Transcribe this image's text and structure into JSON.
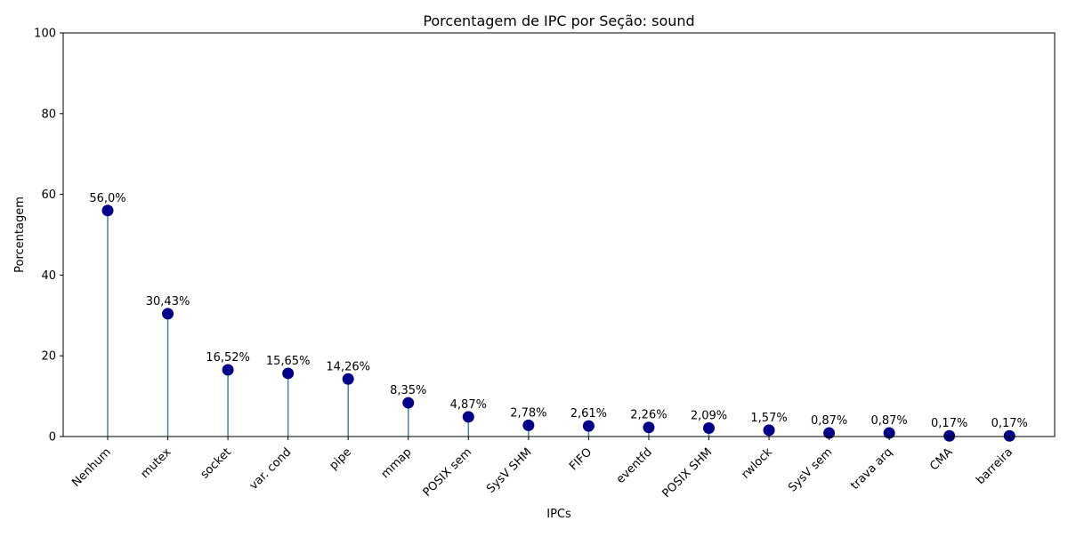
{
  "chart_data": {
    "type": "lollipop",
    "title": "Porcentagem de IPC por Seção: sound",
    "xlabel": "IPCs",
    "ylabel": "Porcentagem",
    "ylim": [
      0,
      100
    ],
    "yticks": [
      0,
      20,
      40,
      60,
      80,
      100
    ],
    "categories": [
      "Nenhum",
      "mutex",
      "socket",
      "var. cond",
      "pipe",
      "mmap",
      "POSIX sem",
      "SysV SHM",
      "FIFO",
      "eventfd",
      "POSIX SHM",
      "rwlock",
      "SysV sem",
      "trava arq",
      "CMA",
      "barreira"
    ],
    "values": [
      56.0,
      30.43,
      16.52,
      15.65,
      14.26,
      8.35,
      4.87,
      2.78,
      2.61,
      2.26,
      2.09,
      1.57,
      0.87,
      0.87,
      0.17,
      0.17
    ],
    "labels": [
      "56,0%",
      "30,43%",
      "16,52%",
      "15,65%",
      "14,26%",
      "8,35%",
      "4,87%",
      "2,78%",
      "2,61%",
      "2,26%",
      "2,09%",
      "1,57%",
      "0,87%",
      "0,87%",
      "0,17%",
      "0,17%"
    ],
    "grid": false,
    "colors": {
      "marker": "#00008b",
      "stem": "#4682b4"
    }
  }
}
